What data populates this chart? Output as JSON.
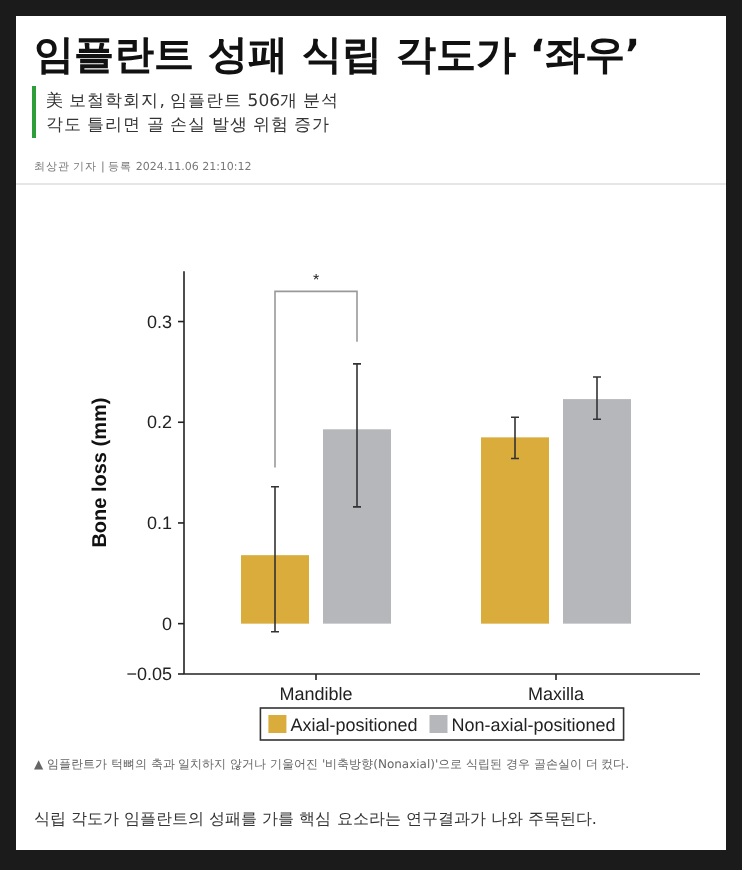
{
  "chart_data": {
    "type": "bar",
    "title": "임플란트 성패 식립 각도가 ‘좌우’",
    "subtitle": "美 보철학회지, 임플란트 506개 분석\n각도 틀리면 골 손실 발생 위험 증가",
    "ylabel": "Bone loss (mm)",
    "categories": [
      "Mandible",
      "Maxilla"
    ],
    "series": [
      {
        "name": "Axial-positioned",
        "color": "#d9ac3c",
        "values": [
          0.068,
          0.185
        ],
        "errors": [
          [
            -0.008,
            0.136
          ],
          [
            0.164,
            0.205
          ]
        ]
      },
      {
        "name": "Non-axial-positioned",
        "color": "#b5b7ba",
        "values": [
          0.193,
          0.223
        ],
        "errors": [
          [
            0.116,
            0.258
          ],
          [
            0.203,
            0.245
          ]
        ]
      }
    ],
    "ylim": [
      -0.05,
      0.35
    ],
    "yticks": [
      -0.05,
      0,
      0.1,
      0.2,
      0.3
    ],
    "grid": false,
    "legend": "bottom",
    "annotations": [
      "*",
      "최상관 기자 | 등록 2024.11.06 21:10:12",
      "▲ 임플란트가 턱뼈의 축과 일치하지 않거나 기울어진 '비축방향(Nonaxial)'으로 식립된 경우 골손실이 더 컸다.",
      "식립 각도가 임플란트의 성패를 가를 핵심 요소라는 연구결과가 나와 주목된다."
    ]
  }
}
